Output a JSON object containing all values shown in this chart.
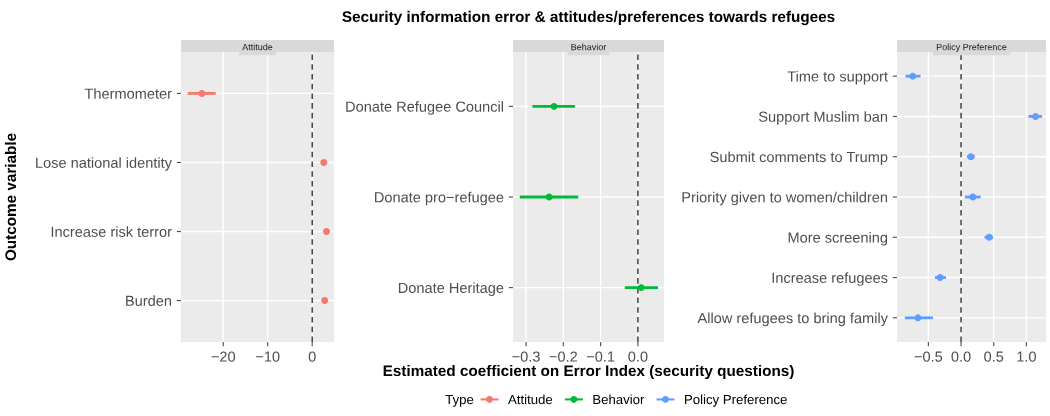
{
  "chart_data": [
    {
      "type": "scatter",
      "orientation": "horizontal",
      "subtitle": "Attitude",
      "ylabel": "Outcome variable",
      "legend": "bottom",
      "legend_title": "Type",
      "marker": "circle",
      "grid": true,
      "categories": [
        "Thermometer",
        "Lose national identity",
        "Increase risk terror",
        "Burden"
      ],
      "series": [
        {
          "name": "Attitude",
          "color": "#f8766d",
          "values": [
            -24.8,
            2.6,
            3.2,
            2.8
          ],
          "errors": [
            [
              -28,
              -21.7
            ],
            null,
            null,
            null
          ]
        }
      ],
      "xlim": [
        -29.5,
        4.9
      ],
      "xticks": [
        {
          "value": -20,
          "label": "−20"
        },
        {
          "value": -10,
          "label": "−10"
        },
        0
      ],
      "ref_lines": [
        {
          "axis": "x",
          "value": 0,
          "color": "#333333",
          "line_style": "dashed"
        }
      ]
    },
    {
      "type": "scatter",
      "orientation": "horizontal",
      "title": "Security information error & attitudes/preferences towards refugees",
      "subtitle": "Behavior",
      "xlabel": "Estimated coefficient on Error Index (security questions)",
      "marker": "circle",
      "grid": true,
      "categories": [
        "Donate Refugee Council",
        "Donate pro−refugee",
        "Donate Heritage"
      ],
      "series": [
        {
          "name": "Behavior",
          "color": "#00ba38",
          "values": [
            -0.225,
            -0.238,
            0.009
          ],
          "errors": [
            [
              -0.283,
              -0.169
            ],
            [
              -0.317,
              -0.16
            ],
            [
              -0.035,
              0.054
            ]
          ]
        }
      ],
      "xlim": [
        -0.335,
        0.07
      ],
      "xticks": [
        {
          "value": -0.3,
          "label": "−0.3"
        },
        {
          "value": -0.2,
          "label": "−0.2"
        },
        {
          "value": -0.1,
          "label": "−0.1"
        },
        {
          "value": 0,
          "label": "0.0"
        }
      ],
      "ref_lines": [
        {
          "axis": "x",
          "value": 0,
          "color": "#333333",
          "line_style": "dashed"
        }
      ]
    },
    {
      "type": "scatter",
      "orientation": "horizontal",
      "subtitle": "Policy Preference",
      "marker": "circle",
      "grid": true,
      "categories": [
        "Time to support",
        "Support Muslim ban",
        "Submit comments to Trump",
        "Priority given to women/children",
        "More screening",
        "Increase refugees",
        "Allow refugees to bring family"
      ],
      "series": [
        {
          "name": "Policy Preference",
          "color": "#619cff",
          "values": [
            -0.74,
            1.14,
            0.15,
            0.18,
            0.43,
            -0.32,
            -0.66
          ],
          "errors": [
            [
              -0.85,
              -0.62
            ],
            [
              1.03,
              1.24
            ],
            [
              0.09,
              0.21
            ],
            [
              0.06,
              0.3
            ],
            [
              0.36,
              0.49
            ],
            [
              -0.4,
              -0.23
            ],
            [
              -0.86,
              -0.43
            ]
          ]
        }
      ],
      "xlim": [
        -0.98,
        1.3
      ],
      "xticks": [
        {
          "value": -0.5,
          "label": "−0.5"
        },
        {
          "value": 0,
          "label": "0.0"
        },
        {
          "value": 0.5,
          "label": "0.5"
        },
        {
          "value": 1,
          "label": "1.0"
        }
      ],
      "ref_lines": [
        {
          "axis": "x",
          "value": 0,
          "color": "#333333",
          "line_style": "dashed"
        }
      ]
    }
  ]
}
